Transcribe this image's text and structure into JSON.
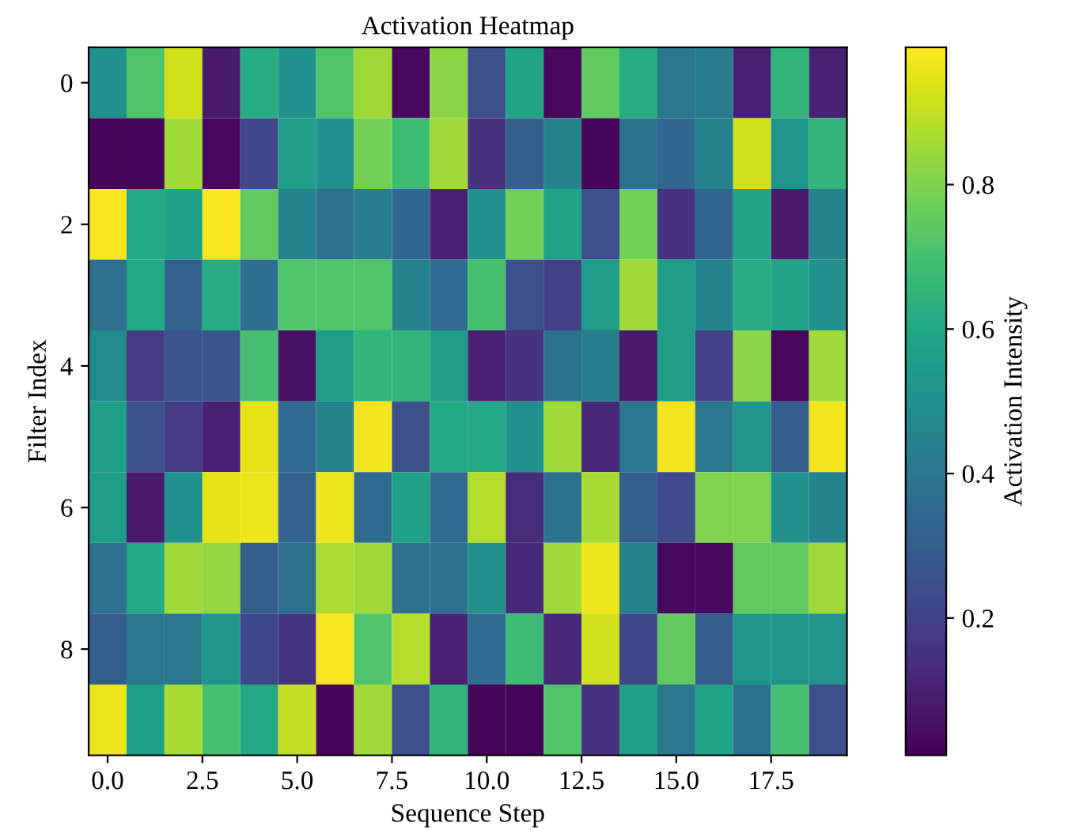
{
  "chart_data": {
    "type": "heatmap",
    "title": "Activation Heatmap",
    "xlabel": "Sequence Step",
    "ylabel": "Filter Index",
    "clabel": "Activation Intensity",
    "x": [
      0,
      1,
      2,
      3,
      4,
      5,
      6,
      7,
      8,
      9,
      10,
      11,
      12,
      13,
      14,
      15,
      16,
      17,
      18,
      19
    ],
    "y_categories": [
      "0",
      null,
      "2",
      null,
      "4",
      null,
      "6",
      null,
      "8",
      null
    ],
    "xlim": [
      -0.5,
      19.5
    ],
    "xticks": [
      {
        "value": 0,
        "label": "0.0"
      },
      {
        "value": 2.5,
        "label": "2.5"
      },
      {
        "value": 5,
        "label": "5.0"
      },
      {
        "value": 7.5,
        "label": "7.5"
      },
      {
        "value": 10,
        "label": "10.0"
      },
      {
        "value": 12.5,
        "label": "12.5"
      },
      {
        "value": 15,
        "label": "15.0"
      },
      {
        "value": 17.5,
        "label": "17.5"
      }
    ],
    "clim": [
      0.01,
      0.99
    ],
    "cticks": [
      0.2,
      0.4,
      0.6,
      0.8
    ],
    "cells": [
      [
        0.5,
        0.72,
        0.92,
        0.08,
        0.62,
        0.5,
        0.72,
        0.85,
        0.03,
        0.82,
        0.25,
        0.58,
        0.03,
        0.75,
        0.62,
        0.4,
        0.42,
        0.1,
        0.65,
        0.1
      ],
      [
        0.02,
        0.02,
        0.85,
        0.03,
        0.22,
        0.55,
        0.5,
        0.78,
        0.68,
        0.85,
        0.15,
        0.3,
        0.45,
        0.02,
        0.38,
        0.33,
        0.45,
        0.92,
        0.52,
        0.65
      ],
      [
        0.98,
        0.6,
        0.57,
        0.98,
        0.75,
        0.45,
        0.37,
        0.42,
        0.33,
        0.1,
        0.5,
        0.78,
        0.58,
        0.25,
        0.78,
        0.15,
        0.33,
        0.58,
        0.08,
        0.45
      ],
      [
        0.37,
        0.6,
        0.32,
        0.62,
        0.36,
        0.72,
        0.72,
        0.72,
        0.45,
        0.35,
        0.7,
        0.25,
        0.2,
        0.55,
        0.85,
        0.55,
        0.45,
        0.62,
        0.58,
        0.5
      ],
      [
        0.48,
        0.18,
        0.27,
        0.27,
        0.7,
        0.05,
        0.55,
        0.65,
        0.65,
        0.55,
        0.1,
        0.15,
        0.38,
        0.43,
        0.08,
        0.55,
        0.2,
        0.82,
        0.03,
        0.85
      ],
      [
        0.55,
        0.25,
        0.18,
        0.1,
        0.95,
        0.35,
        0.45,
        0.97,
        0.25,
        0.6,
        0.6,
        0.5,
        0.85,
        0.12,
        0.4,
        0.97,
        0.4,
        0.52,
        0.3,
        0.97
      ],
      [
        0.55,
        0.08,
        0.5,
        0.95,
        0.96,
        0.32,
        0.96,
        0.35,
        0.57,
        0.35,
        0.88,
        0.13,
        0.38,
        0.86,
        0.3,
        0.23,
        0.8,
        0.8,
        0.5,
        0.45
      ],
      [
        0.37,
        0.6,
        0.85,
        0.83,
        0.3,
        0.37,
        0.87,
        0.85,
        0.37,
        0.37,
        0.5,
        0.12,
        0.85,
        0.96,
        0.45,
        0.03,
        0.03,
        0.75,
        0.75,
        0.85
      ],
      [
        0.3,
        0.4,
        0.4,
        0.52,
        0.22,
        0.16,
        0.98,
        0.72,
        0.88,
        0.1,
        0.35,
        0.68,
        0.12,
        0.92,
        0.22,
        0.75,
        0.3,
        0.52,
        0.52,
        0.52
      ],
      [
        0.96,
        0.57,
        0.86,
        0.7,
        0.6,
        0.9,
        0.02,
        0.85,
        0.25,
        0.65,
        0.02,
        0.02,
        0.72,
        0.15,
        0.57,
        0.4,
        0.58,
        0.38,
        0.7,
        0.25
      ]
    ]
  }
}
